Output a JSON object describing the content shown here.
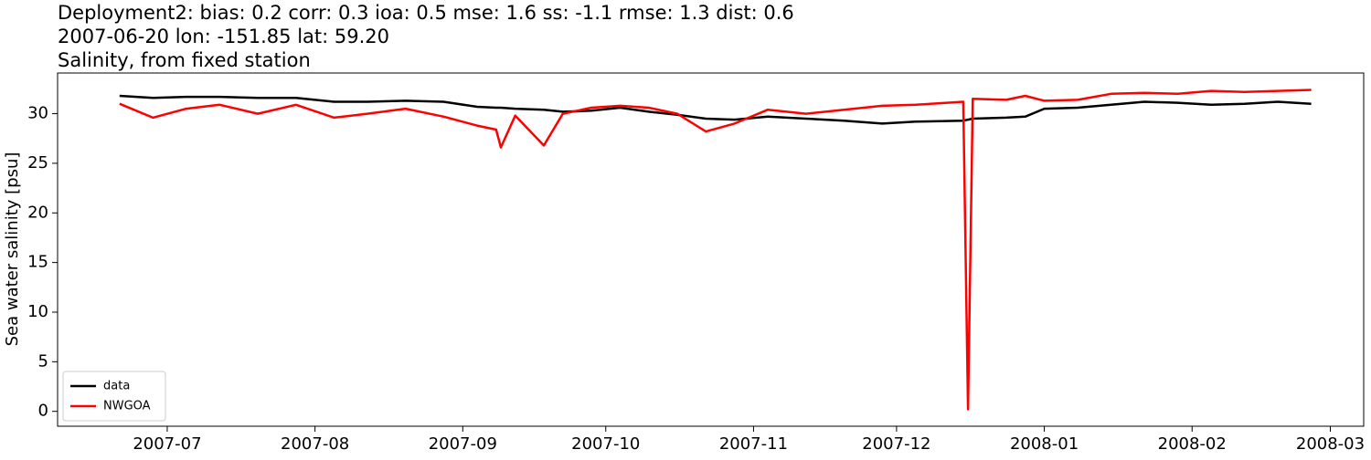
{
  "chart_data": {
    "type": "line",
    "title": [
      "Deployment2: bias: 0.2  corr: 0.3  ioa: 0.5  mse: 1.6  ss: -1.1  rmse: 1.3  dist: 0.6",
      "2007-06-20 lon: -151.85 lat: 59.20",
      "Salinity, from fixed station"
    ],
    "y_label": "Sea water salinity [psu]",
    "x": [
      "2007-06-21",
      "2007-06-28",
      "2007-07-05",
      "2007-07-12",
      "2007-07-20",
      "2007-07-28",
      "2007-08-05",
      "2007-08-12",
      "2007-08-20",
      "2007-08-28",
      "2007-09-04",
      "2007-09-08",
      "2007-09-09",
      "2007-09-12",
      "2007-09-18",
      "2007-09-22",
      "2007-09-28",
      "2007-10-04",
      "2007-10-10",
      "2007-10-16",
      "2007-10-22",
      "2007-10-28",
      "2007-11-04",
      "2007-11-12",
      "2007-11-20",
      "2007-11-28",
      "2007-12-05",
      "2007-12-15",
      "2007-12-16",
      "2007-12-17",
      "2007-12-24",
      "2007-12-28",
      "2008-01-01",
      "2008-01-08",
      "2008-01-15",
      "2008-01-22",
      "2008-01-29",
      "2008-02-05",
      "2008-02-12",
      "2008-02-19",
      "2008-02-26"
    ],
    "series": [
      {
        "name": "data",
        "color": "#000000",
        "values": [
          31.8,
          31.6,
          31.7,
          31.7,
          31.6,
          31.6,
          31.2,
          31.2,
          31.3,
          31.2,
          30.7,
          30.6,
          30.6,
          30.5,
          30.4,
          30.2,
          30.3,
          30.6,
          30.2,
          29.9,
          29.5,
          29.4,
          29.7,
          29.5,
          29.3,
          29.0,
          29.2,
          29.3,
          29.4,
          29.5,
          29.6,
          29.7,
          30.5,
          30.6,
          30.9,
          31.2,
          31.1,
          30.9,
          31.0,
          31.2,
          31.0
        ]
      },
      {
        "name": "NWGOA",
        "color": "#ff0000",
        "values": [
          31.0,
          29.6,
          30.5,
          30.9,
          30.0,
          30.9,
          29.6,
          30.0,
          30.5,
          29.7,
          28.8,
          28.4,
          26.6,
          29.8,
          26.8,
          30.0,
          30.6,
          30.8,
          30.6,
          30.0,
          28.2,
          29.0,
          30.4,
          30.0,
          30.4,
          30.8,
          30.9,
          31.2,
          0.2,
          31.5,
          31.4,
          31.8,
          31.3,
          31.4,
          32.0,
          32.1,
          32.0,
          32.3,
          32.2,
          32.3,
          32.4
        ]
      }
    ],
    "xlim": [
      "2007-06-08",
      "2008-03-08"
    ],
    "xticks": [
      "2007-07",
      "2007-08",
      "2007-09",
      "2007-10",
      "2007-11",
      "2007-12",
      "2008-01",
      "2008-02",
      "2008-03"
    ],
    "ylim": [
      -1.5,
      34.1
    ],
    "yticks": [
      0,
      5,
      10,
      15,
      20,
      25,
      30
    ],
    "legend": "lower left"
  }
}
